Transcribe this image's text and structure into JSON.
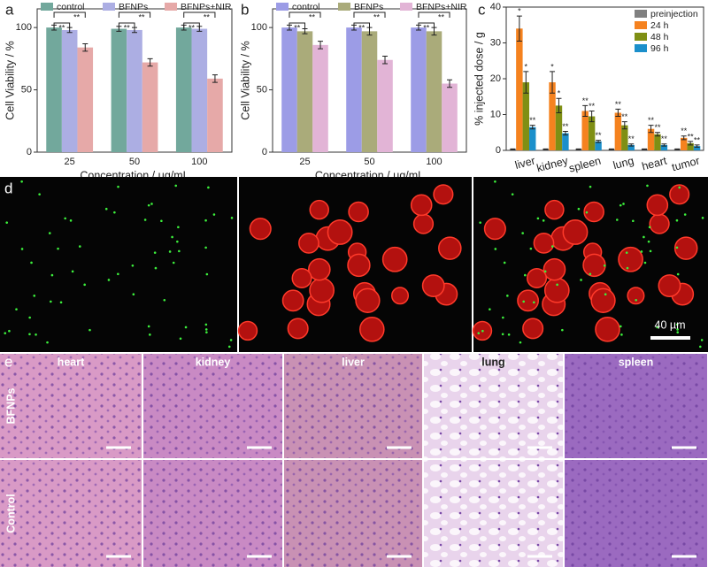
{
  "chart_data": [
    {
      "type": "bar",
      "label": "a",
      "ylabel": "Cell Viability / %",
      "xlabel": "Concentration / μg/mL",
      "categories": [
        "25",
        "50",
        "100"
      ],
      "ylim": [
        0,
        115
      ],
      "yticks": [
        0,
        50,
        100
      ],
      "legend": "top",
      "series": [
        {
          "name": "control",
          "color": "#72a89c",
          "values": [
            100,
            99,
            100
          ],
          "errors": [
            2,
            2,
            2
          ]
        },
        {
          "name": "BFNPs",
          "color": "#acaee3",
          "values": [
            98,
            98,
            99
          ],
          "errors": [
            2,
            2,
            2
          ]
        },
        {
          "name": "BFNPs+NIR",
          "color": "#e6a9a8",
          "values": [
            84,
            72,
            59
          ],
          "errors": [
            3,
            3,
            3
          ]
        }
      ],
      "significance": [
        [
          "**",
          "**"
        ],
        [
          "**",
          "**"
        ],
        [
          "**",
          "**"
        ]
      ]
    },
    {
      "type": "bar",
      "label": "b",
      "ylabel": "Cell Viability / %",
      "xlabel": "Concentration / μg/mL",
      "categories": [
        "25",
        "50",
        "100"
      ],
      "ylim": [
        0,
        115
      ],
      "yticks": [
        0,
        50,
        100
      ],
      "legend": "top",
      "series": [
        {
          "name": "control",
          "color": "#9c9ce6",
          "values": [
            100,
            100,
            100
          ],
          "errors": [
            2,
            2,
            2
          ]
        },
        {
          "name": "BFNPs",
          "color": "#aaab7a",
          "values": [
            97,
            97,
            97
          ],
          "errors": [
            2,
            3,
            3
          ]
        },
        {
          "name": "BFNPs+NIR",
          "color": "#e2b4d6",
          "values": [
            86,
            74,
            55
          ],
          "errors": [
            3,
            3,
            3
          ]
        }
      ],
      "significance": [
        [
          "**",
          "**"
        ],
        [
          "**",
          "**"
        ],
        [
          "**",
          "**"
        ]
      ]
    },
    {
      "type": "bar",
      "label": "c",
      "ylabel": "% injected dose / g",
      "categories": [
        "liver",
        "kidney",
        "spleen",
        "lung",
        "heart",
        "tumor"
      ],
      "ylim": [
        0,
        40
      ],
      "yticks": [
        0,
        10,
        20,
        30,
        40
      ],
      "legend": "upper right",
      "series": [
        {
          "name": "preinjection",
          "color": "#808080",
          "values": [
            0.3,
            0.3,
            0.3,
            0.3,
            0.3,
            0.3
          ],
          "errors": [
            0.1,
            0.1,
            0.1,
            0.1,
            0.1,
            0.1
          ]
        },
        {
          "name": "24 h",
          "color": "#f5821f",
          "values": [
            34,
            19,
            11,
            10.5,
            6,
            3.5
          ],
          "errors": [
            3.5,
            3,
            1.5,
            1,
            1,
            0.5
          ]
        },
        {
          "name": "48 h",
          "color": "#7f8f14",
          "values": [
            19,
            12.5,
            9.5,
            7,
            4.5,
            2
          ],
          "errors": [
            3,
            2,
            1.5,
            1,
            0.5,
            0.5
          ]
        },
        {
          "name": "96 h",
          "color": "#1b8fcb",
          "values": [
            6.5,
            4.8,
            2.5,
            1.5,
            1.5,
            1.2
          ],
          "errors": [
            0.5,
            0.5,
            0.3,
            0.3,
            0.3,
            0.3
          ]
        }
      ],
      "significance": [
        [
          "*",
          "*",
          "**"
        ],
        [
          "*",
          "*",
          "**"
        ],
        [
          "**",
          "**",
          "**"
        ],
        [
          "**",
          "**",
          "**"
        ],
        [
          "**",
          "**",
          "**"
        ],
        [
          "**",
          "**",
          "**"
        ]
      ]
    }
  ],
  "microscopy": {
    "label": "d",
    "scale_bar": "40 µm"
  },
  "histology": {
    "label": "e",
    "organs": [
      "heart",
      "kidney",
      "liver",
      "lung",
      "spleen"
    ],
    "rows": [
      "BFNPs",
      "Control"
    ]
  }
}
